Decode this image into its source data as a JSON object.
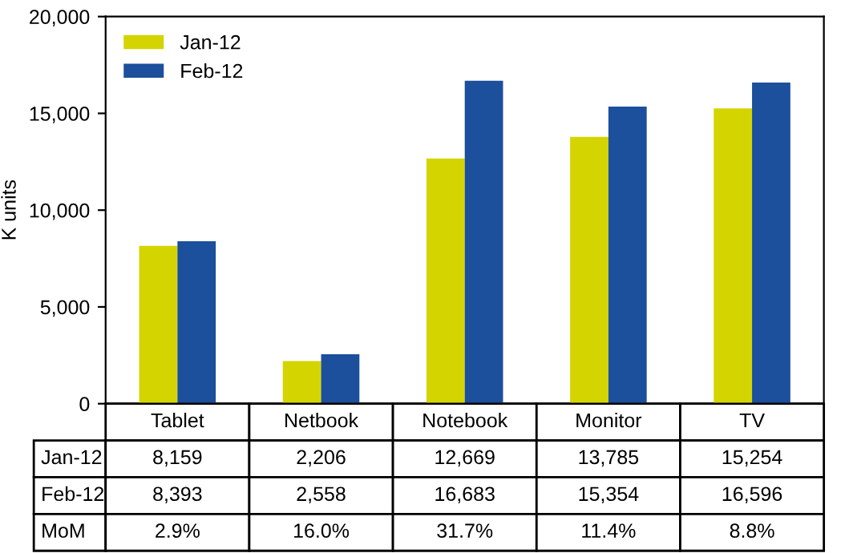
{
  "chart_data": {
    "type": "bar",
    "ylabel": "K units",
    "categories": [
      "Tablet",
      "Netbook",
      "Notebook",
      "Monitor",
      "TV"
    ],
    "series": [
      {
        "name": "Jan-12",
        "color": "#d4d400",
        "values": [
          8159,
          2206,
          12669,
          13785,
          15254
        ],
        "value_labels": [
          "8,159",
          "2,206",
          "12,669",
          "13,785",
          "15,254"
        ]
      },
      {
        "name": "Feb-12",
        "color": "#1c4f9c",
        "values": [
          8393,
          2558,
          16683,
          15354,
          16596
        ],
        "value_labels": [
          "8,393",
          "2,558",
          "16,683",
          "15,354",
          "16,596"
        ]
      }
    ],
    "ylim": [
      0,
      20000
    ],
    "yticks": [
      0,
      {
        "value": 5000,
        "label": "5,000"
      },
      {
        "value": 10000,
        "label": "10,000"
      },
      {
        "value": 15000,
        "label": "15,000"
      },
      {
        "value": 20000,
        "label": "20,000"
      }
    ],
    "legend": "top left",
    "grid": false,
    "annotations": [
      "MoM",
      "2.9%",
      "16.0%",
      "31.7%",
      "11.4%",
      "8.8%"
    ]
  }
}
